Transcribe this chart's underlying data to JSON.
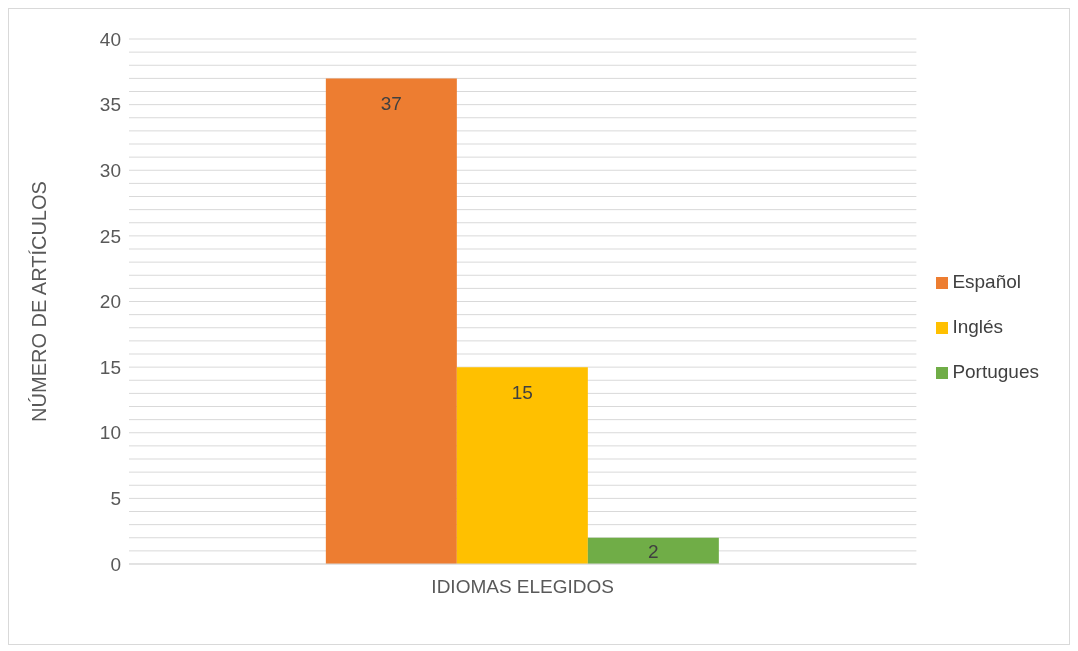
{
  "chart_data": {
    "type": "bar",
    "categories": [
      "IDIOMAS ELEGIDOS"
    ],
    "ylabel": "NÚMERO DE ARTÍCULOS",
    "series": [
      {
        "name": "Español",
        "color": "#ed7d31",
        "values": [
          37
        ]
      },
      {
        "name": "Inglés",
        "color": "#ffc000",
        "values": [
          15
        ]
      },
      {
        "name": "Portugues",
        "color": "#70ad47",
        "values": [
          2
        ]
      }
    ],
    "ylim": [
      0,
      40
    ],
    "yticks": [
      0,
      {
        "value": 1,
        "label": null
      },
      {
        "value": 2,
        "label": null
      },
      {
        "value": 3,
        "label": null
      },
      {
        "value": 4,
        "label": null
      },
      5,
      {
        "value": 6,
        "label": null
      },
      {
        "value": 7,
        "label": null
      },
      {
        "value": 8,
        "label": null
      },
      {
        "value": 9,
        "label": null
      },
      10,
      {
        "value": 11,
        "label": null
      },
      {
        "value": 12,
        "label": null
      },
      {
        "value": 13,
        "label": null
      },
      {
        "value": 14,
        "label": null
      },
      15,
      {
        "value": 16,
        "label": null
      },
      {
        "value": 17,
        "label": null
      },
      {
        "value": 18,
        "label": null
      },
      {
        "value": 19,
        "label": null
      },
      20,
      {
        "value": 21,
        "label": null
      },
      {
        "value": 22,
        "label": null
      },
      {
        "value": 23,
        "label": null
      },
      {
        "value": 24,
        "label": null
      },
      25,
      {
        "value": 26,
        "label": null
      },
      {
        "value": 27,
        "label": null
      },
      {
        "value": 28,
        "label": null
      },
      {
        "value": 29,
        "label": null
      },
      30,
      {
        "value": 31,
        "label": null
      },
      {
        "value": 32,
        "label": null
      },
      {
        "value": 33,
        "label": null
      },
      {
        "value": 34,
        "label": null
      },
      35,
      {
        "value": 36,
        "label": null
      },
      {
        "value": 37,
        "label": null
      },
      {
        "value": 38,
        "label": null
      },
      {
        "value": 39,
        "label": null
      },
      40
    ],
    "grid": "y",
    "legend": "right",
    "data_labels": true
  }
}
